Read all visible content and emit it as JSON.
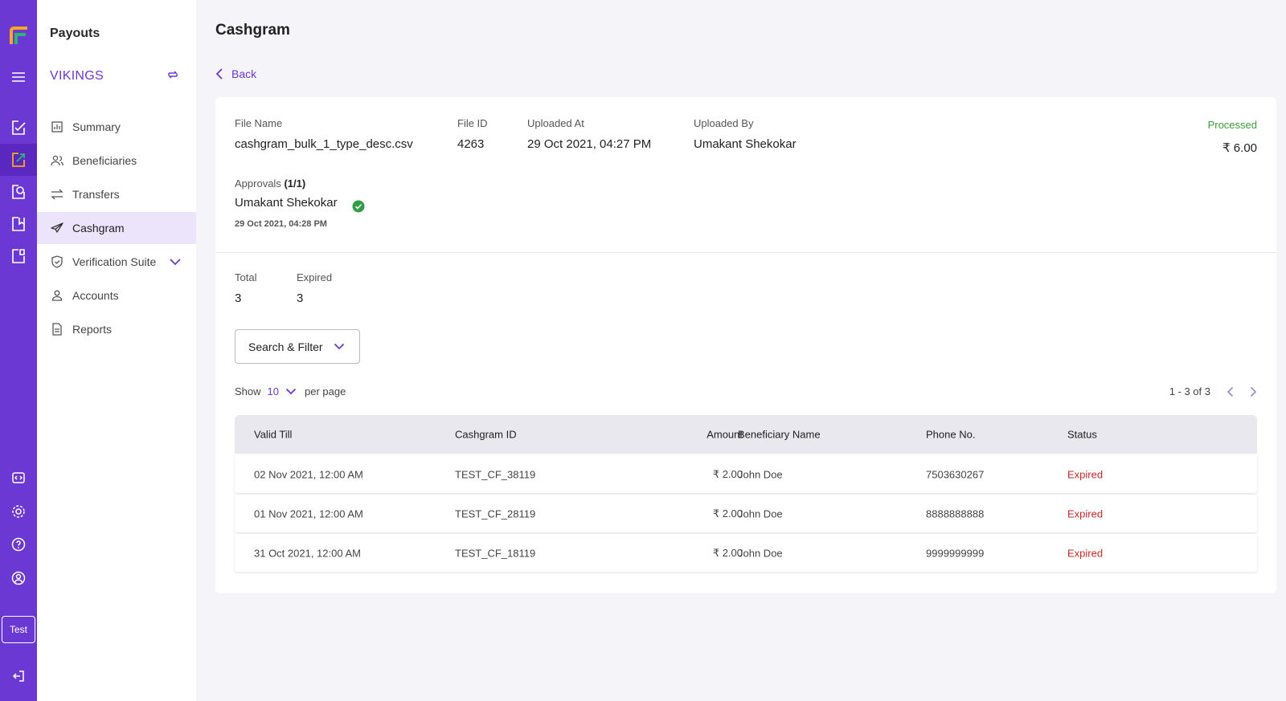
{
  "rail": {
    "items": [
      {
        "icon": "logo-icon"
      },
      {
        "icon": "menu-icon"
      },
      {
        "icon": "edit-check-icon"
      },
      {
        "icon": "payouts-icon",
        "active": true
      },
      {
        "icon": "refresh-doc-icon"
      },
      {
        "icon": "doc-icon"
      },
      {
        "icon": "doc-flag-icon"
      }
    ],
    "bottom": [
      {
        "icon": "code-icon"
      },
      {
        "icon": "gear-icon"
      },
      {
        "icon": "help-icon"
      },
      {
        "icon": "user-circle-icon"
      }
    ],
    "test_label": "Test",
    "logout_icon": "logout-icon"
  },
  "sidenav": {
    "title": "Payouts",
    "org": "VIKINGS",
    "items": [
      {
        "label": "Summary",
        "icon": "chart-icon"
      },
      {
        "label": "Beneficiaries",
        "icon": "users-icon"
      },
      {
        "label": "Transfers",
        "icon": "transfer-icon"
      },
      {
        "label": "Cashgram",
        "icon": "send-icon",
        "active": true
      },
      {
        "label": "Verification Suite",
        "icon": "shield-check-icon"
      },
      {
        "label": "Accounts",
        "icon": "user-icon"
      },
      {
        "label": "Reports",
        "icon": "report-icon"
      }
    ]
  },
  "main": {
    "title": "Cashgram",
    "back_label": "Back",
    "file": {
      "name_label": "File Name",
      "name": "cashgram_bulk_1_type_desc.csv",
      "id_label": "File ID",
      "id": "4263",
      "uploaded_at_label": "Uploaded At",
      "uploaded_at": "29 Oct 2021, 04:27 PM",
      "uploaded_by_label": "Uploaded By",
      "uploaded_by": "Umakant Shekokar",
      "status": "Processed",
      "amount": "₹ 6.00",
      "approvals_label": "Approvals",
      "approvals_count": "(1/1)",
      "approver": "Umakant Shekokar",
      "approved_at": "29 Oct 2021, 04:28 PM"
    },
    "stats": {
      "total_label": "Total",
      "total": "3",
      "expired_label": "Expired",
      "expired": "3"
    },
    "filter_label": "Search & Filter",
    "show": {
      "prefix": "Show",
      "value": "10",
      "suffix": "per page"
    },
    "pager_text": "1 - 3 of 3",
    "table": {
      "headers": [
        "Valid Till",
        "Cashgram ID",
        "Amount",
        "Beneficiary Name",
        "Phone No.",
        "Status"
      ],
      "rows": [
        {
          "valid_till": "02 Nov 2021, 12:00 AM",
          "id": "TEST_CF_38119",
          "amount": "₹ 2.00",
          "name": "John Doe",
          "phone": "7503630267",
          "status": "Expired"
        },
        {
          "valid_till": "01 Nov 2021, 12:00 AM",
          "id": "TEST_CF_28119",
          "amount": "₹ 2.00",
          "name": "John Doe",
          "phone": "8888888888",
          "status": "Expired"
        },
        {
          "valid_till": "31 Oct 2021, 12:00 AM",
          "id": "TEST_CF_18119",
          "amount": "₹ 2.00",
          "name": "John Doe",
          "phone": "9999999999",
          "status": "Expired"
        }
      ]
    }
  },
  "colors": {
    "brand": "#6b38d4",
    "processed": "#3a9b3a",
    "expired": "#c62828"
  }
}
